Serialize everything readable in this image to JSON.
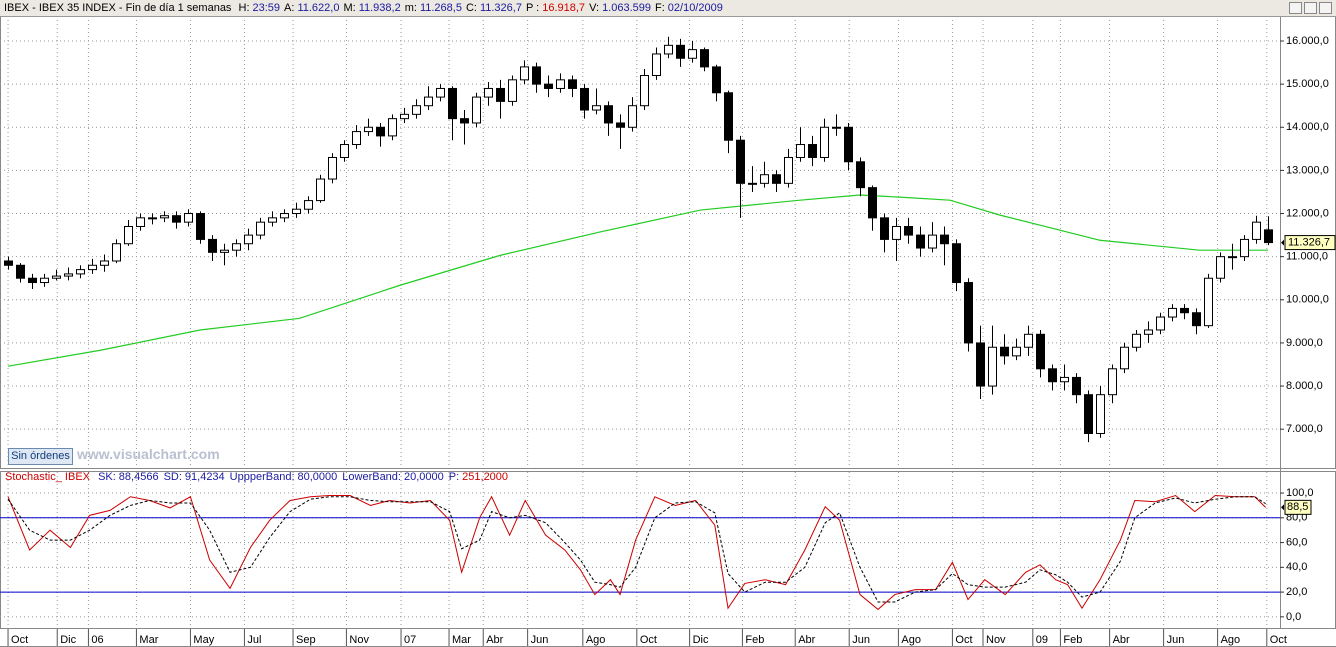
{
  "header": {
    "title": "IBEX - IBEX 35 INDEX - Fin de día 1 semanas",
    "fields": [
      {
        "label": "H:",
        "value": "23:59",
        "color": "#1a1aa0"
      },
      {
        "label": "A:",
        "value": "11.622,0",
        "color": "#1a1aa0"
      },
      {
        "label": "M:",
        "value": "11.938,2",
        "color": "#1a1aa0"
      },
      {
        "label": "m:",
        "value": "11.268,5",
        "color": "#1a1aa0"
      },
      {
        "label": "C:",
        "value": "11.326,7",
        "color": "#1a1aa0"
      },
      {
        "label": "P :",
        "value": "16.918,7",
        "color": "#d00000"
      },
      {
        "label": "V:",
        "value": "1.063.599",
        "color": "#1a1aa0"
      },
      {
        "label": "F:",
        "value": "02/10/2009",
        "color": "#1a1aa0"
      }
    ]
  },
  "button": "Sin órdenes",
  "watermark": "www.visualchart.com",
  "chart_data": [
    {
      "type": "candlestick",
      "up_color": "#ffffff",
      "down_color": "#000000",
      "edge_color": "#000000",
      "grid": true,
      "xlim": [
        -0.67,
        106
      ],
      "ylim": [
        6100,
        16580
      ],
      "yticks": [
        {
          "value": 7000,
          "label": "7.000,0"
        },
        {
          "value": 8000,
          "label": "8.000,0"
        },
        {
          "value": 9000,
          "label": "9.000,0"
        },
        {
          "value": 10000,
          "label": "10.000,0"
        },
        {
          "value": 11000,
          "label": "11.000,0"
        },
        {
          "value": 12000,
          "label": "12.000,0"
        },
        {
          "value": 13000,
          "label": "13.000,0"
        },
        {
          "value": 14000,
          "label": "14.000,0"
        },
        {
          "value": 15000,
          "label": "15.000,0"
        },
        {
          "value": 16000,
          "label": "16.000,0"
        }
      ],
      "open": [
        10900,
        10800,
        10500,
        10400,
        10500,
        10550,
        10600,
        10700,
        10800,
        10900,
        11300,
        11700,
        11900,
        11900,
        11950,
        11800,
        12000,
        11400,
        11100,
        11150,
        11300,
        11500,
        11800,
        11900,
        12000,
        12100,
        12300,
        12800,
        13300,
        13600,
        13900,
        14000,
        13800,
        14200,
        14300,
        14500,
        14700,
        14900,
        14200,
        14100,
        14700,
        14900,
        14600,
        15100,
        15400,
        15000,
        14900,
        15100,
        14900,
        14400,
        14500,
        14100,
        14000,
        14500,
        15200,
        15700,
        15900,
        15600,
        15800,
        15400,
        14800,
        13700,
        12700,
        12700,
        12900,
        12700,
        13300,
        13600,
        13300,
        14000,
        14000,
        13200,
        12600,
        11900,
        11400,
        11700,
        11500,
        11200,
        11500,
        11300,
        10400,
        9000,
        8000,
        8900,
        8700,
        8900,
        9200,
        8400,
        8100,
        8200,
        7800,
        6900,
        7800,
        8400,
        8900,
        9200,
        9300,
        9600,
        9800,
        9700,
        9400,
        10500,
        11000,
        11000,
        11400,
        11622
      ],
      "high": [
        11000,
        10850,
        10600,
        10600,
        10700,
        10750,
        10800,
        10950,
        11050,
        11400,
        11850,
        12000,
        12000,
        12050,
        12050,
        12100,
        12050,
        11500,
        11300,
        11400,
        11650,
        11900,
        12050,
        12100,
        12250,
        12400,
        12900,
        13400,
        13700,
        14050,
        14200,
        14100,
        14300,
        14450,
        14650,
        14950,
        15000,
        14950,
        14400,
        14800,
        15050,
        15100,
        15200,
        15550,
        15500,
        15200,
        15250,
        15200,
        15000,
        14900,
        14600,
        14300,
        14700,
        15350,
        15850,
        16100,
        16050,
        16000,
        15850,
        15450,
        14850,
        13800,
        13100,
        13200,
        13000,
        13500,
        14000,
        13800,
        14200,
        14300,
        14100,
        13300,
        12650,
        12000,
        11900,
        11900,
        11700,
        11800,
        11700,
        11400,
        10500,
        9400,
        9400,
        9200,
        9100,
        9400,
        9300,
        8500,
        8500,
        8300,
        7900,
        8000,
        8500,
        9000,
        9300,
        9500,
        9700,
        9900,
        9900,
        9800,
        10600,
        11100,
        11300,
        11500,
        11950,
        11938.2
      ],
      "low": [
        10700,
        10400,
        10250,
        10300,
        10450,
        10450,
        10500,
        10600,
        10650,
        10850,
        11250,
        11600,
        11750,
        11800,
        11650,
        11700,
        11300,
        10900,
        10800,
        11000,
        11150,
        11400,
        11700,
        11800,
        11900,
        12000,
        12250,
        12700,
        13200,
        13500,
        13800,
        13550,
        13700,
        14100,
        14200,
        14400,
        14600,
        13700,
        13600,
        14000,
        14500,
        14200,
        14500,
        15000,
        14800,
        14700,
        14800,
        14700,
        14200,
        14300,
        13800,
        13500,
        13900,
        14400,
        15100,
        15600,
        15400,
        15500,
        15300,
        14600,
        13400,
        11900,
        12500,
        12600,
        12500,
        12600,
        13200,
        13100,
        13200,
        13800,
        13000,
        12400,
        11600,
        11100,
        10900,
        11300,
        11000,
        11100,
        10800,
        10200,
        8800,
        7700,
        7800,
        8500,
        8600,
        8700,
        8200,
        7900,
        7900,
        7600,
        6700,
        6800,
        7600,
        8300,
        8800,
        9000,
        9200,
        9500,
        9550,
        9200,
        9350,
        10400,
        10700,
        10900,
        11300,
        11268.5
      ],
      "close": [
        10800,
        10500,
        10400,
        10500,
        10550,
        10600,
        10700,
        10800,
        10900,
        11300,
        11700,
        11900,
        11900,
        11950,
        11800,
        12000,
        11400,
        11100,
        11150,
        11300,
        11500,
        11800,
        11900,
        12000,
        12100,
        12300,
        12800,
        13300,
        13600,
        13900,
        14000,
        13800,
        14200,
        14300,
        14500,
        14700,
        14900,
        14200,
        14100,
        14700,
        14900,
        14600,
        15100,
        15400,
        15000,
        14900,
        15100,
        14900,
        14400,
        14500,
        14100,
        14000,
        14500,
        15200,
        15700,
        15900,
        15600,
        15800,
        15400,
        14800,
        13700,
        12700,
        12700,
        12900,
        12700,
        13300,
        13600,
        13300,
        14000,
        14000,
        13200,
        12600,
        11900,
        11400,
        11700,
        11500,
        11200,
        11500,
        11300,
        10400,
        9000,
        8000,
        8900,
        8700,
        8900,
        9200,
        8400,
        8100,
        8200,
        7800,
        6900,
        7800,
        8400,
        8900,
        9200,
        9300,
        9600,
        9800,
        9700,
        9400,
        10500,
        11000,
        11000,
        11400,
        11800,
        11326.7
      ],
      "close_label": "11.326,7",
      "ma": {
        "color": "#22cc22",
        "x": [
          0,
          7.7,
          16,
          24.3,
          32.7,
          41,
          49.3,
          57.7,
          66,
          71,
          74.3,
          78.5,
          82.7,
          91,
          99.3,
          105
        ],
        "values": [
          8460,
          8830,
          9300,
          9570,
          10340,
          11030,
          11570,
          12080,
          12310,
          12430,
          12380,
          12310,
          11960,
          11380,
          11150,
          11150
        ]
      }
    },
    {
      "type": "line",
      "grid": true,
      "title": "Stochastic_ IBEX",
      "fields": [
        {
          "label": "SK:",
          "value": "88,4566"
        },
        {
          "label": "SD:",
          "value": "91,4234"
        },
        {
          "label": "UppperBand:",
          "value": "80,0000"
        },
        {
          "label": "LowerBand:",
          "value": "20,0000"
        },
        {
          "label": "P:",
          "value": "251,2000"
        }
      ],
      "xlim": [
        -0.67,
        106
      ],
      "ylim": [
        -9,
        117
      ],
      "xticks": [
        {
          "value": 0,
          "label": "Oct"
        },
        {
          "value": 4.1,
          "label": "Dic"
        },
        {
          "value": 6.7,
          "label": "06"
        },
        {
          "value": 10.7,
          "label": "Mar"
        },
        {
          "value": 15.2,
          "label": "May"
        },
        {
          "value": 19.7,
          "label": "Jul"
        },
        {
          "value": 23.75,
          "label": "Sep"
        },
        {
          "value": 28.2,
          "label": "Nov"
        },
        {
          "value": 32.75,
          "label": "07"
        },
        {
          "value": 36.75,
          "label": "Mar"
        },
        {
          "value": 39.6,
          "label": "Abr"
        },
        {
          "value": 43.3,
          "label": "Jun"
        },
        {
          "value": 47.9,
          "label": "Ago"
        },
        {
          "value": 52.4,
          "label": "Oct"
        },
        {
          "value": 56.8,
          "label": "Dic"
        },
        {
          "value": 61.2,
          "label": "Feb"
        },
        {
          "value": 65.6,
          "label": "Abr"
        },
        {
          "value": 70.1,
          "label": "Jun"
        },
        {
          "value": 74.2,
          "label": "Ago"
        },
        {
          "value": 78.7,
          "label": "Oct"
        },
        {
          "value": 81.25,
          "label": "Nov"
        },
        {
          "value": 85.4,
          "label": "09"
        },
        {
          "value": 87.7,
          "label": "Feb"
        },
        {
          "value": 91.8,
          "label": "Abr"
        },
        {
          "value": 96.3,
          "label": "Jun"
        },
        {
          "value": 100.8,
          "label": "Ago"
        },
        {
          "value": 104.9,
          "label": "Oct"
        }
      ],
      "yticks": [
        {
          "value": 0,
          "label": "0,0"
        },
        {
          "value": 20,
          "label": "20,0"
        },
        {
          "value": 40,
          "label": "40,0"
        },
        {
          "value": 60,
          "label": "60,0"
        },
        {
          "value": 80,
          "label": "80,0"
        },
        {
          "value": 100,
          "label": "100,0"
        }
      ],
      "bands": [
        {
          "value": 80,
          "color": "#0000cc"
        },
        {
          "value": 20,
          "color": "#0000cc"
        }
      ],
      "series": [
        {
          "color": "#cc0000",
          "dashed": false,
          "x": [
            0,
            1.8,
            3.5,
            5.2,
            6.8,
            8.5,
            10.2,
            11.8,
            13.5,
            15.2,
            16.8,
            18.5,
            20.2,
            21.8,
            23.5,
            25.2,
            26.8,
            28.5,
            30.2,
            31.8,
            33.5,
            35.2,
            36.8,
            37.8,
            39.3,
            40.3,
            41.8,
            43.1,
            44.8,
            46.4,
            47.7,
            48.9,
            50.2,
            51,
            52.3,
            53.9,
            55.6,
            57.3,
            58.9,
            60,
            61.4,
            63.1,
            64.8,
            66.4,
            68.1,
            69.3,
            71,
            72.5,
            73.9,
            75.6,
            77.3,
            78.7,
            80,
            81.4,
            83.1,
            84.8,
            86,
            87.3,
            88.3,
            89.5,
            91,
            92.7,
            93.9,
            95.6,
            97.3,
            98.9,
            100.6,
            102.3,
            103.9,
            104.8
          ],
          "values": [
            97,
            54,
            70,
            56,
            82,
            86,
            97,
            94,
            88,
            97,
            46,
            23,
            56,
            78,
            94,
            97,
            98,
            98,
            90,
            94,
            92,
            94,
            78,
            36,
            80,
            97,
            66,
            94,
            66,
            54,
            38,
            18,
            30,
            18,
            62,
            97,
            90,
            94,
            74,
            7,
            27,
            30,
            26,
            54,
            89,
            78,
            18,
            6,
            18,
            22,
            22,
            44,
            14,
            30,
            18,
            36,
            42,
            30,
            26,
            7,
            30,
            62,
            94,
            93,
            98,
            85,
            98,
            97,
            97,
            88.4566
          ]
        },
        {
          "color": "#000000",
          "dashed": true,
          "x": [
            0,
            1.8,
            3.5,
            5.2,
            6.8,
            8.5,
            10.2,
            11.8,
            13.5,
            15.2,
            16.8,
            18.5,
            20.2,
            21.8,
            23.5,
            25.2,
            26.8,
            28.5,
            30.2,
            31.8,
            33.5,
            35.2,
            36.8,
            37.8,
            39.3,
            40.3,
            41.8,
            43.1,
            44.8,
            46.4,
            47.7,
            48.9,
            50.2,
            51,
            52.3,
            53.9,
            55.6,
            57.3,
            58.9,
            60,
            61.4,
            63.1,
            64.8,
            66.4,
            68.1,
            69.3,
            71,
            72.5,
            73.9,
            75.6,
            77.3,
            78.7,
            80,
            81.4,
            83.1,
            84.8,
            86,
            87.3,
            88.3,
            89.5,
            91,
            92.7,
            93.9,
            95.6,
            97.3,
            98.9,
            100.6,
            102.3,
            103.9,
            104.8
          ],
          "values": [
            95,
            70,
            62,
            62,
            70,
            82,
            90,
            94,
            92,
            92,
            70,
            36,
            40,
            64,
            85,
            95,
            97,
            97,
            94,
            93,
            93,
            93,
            85,
            55,
            62,
            85,
            80,
            82,
            76,
            60,
            46,
            28,
            26,
            24,
            40,
            80,
            92,
            93,
            84,
            35,
            20,
            28,
            28,
            40,
            76,
            84,
            40,
            12,
            12,
            20,
            22,
            35,
            26,
            24,
            24,
            28,
            38,
            34,
            28,
            16,
            20,
            45,
            80,
            92,
            96,
            92,
            95,
            97,
            97,
            91.4234
          ]
        }
      ],
      "last_label": "88,5"
    }
  ]
}
